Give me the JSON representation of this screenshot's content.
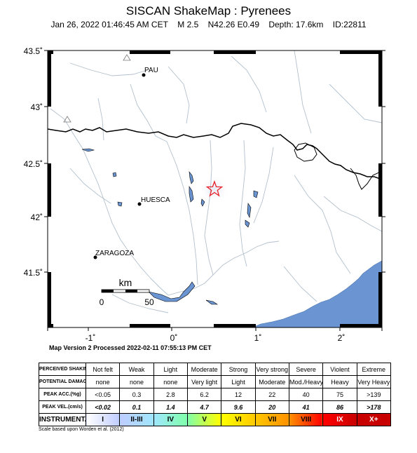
{
  "header": {
    "title": "SISCAN ShakeMap : Pyrenees",
    "date": "Jan 26, 2022 01:46:45 AM CET",
    "magnitude": "M 2.5",
    "location": "N42.26 E0.49",
    "depth": "Depth: 17.6km",
    "event_id": "ID:22811"
  },
  "map": {
    "lat_labels": [
      "43.5˚",
      "43˚",
      "42.5˚",
      "42˚",
      "41.5˚"
    ],
    "lon_labels": [
      "-1˚",
      "0˚",
      "1˚",
      "2˚"
    ],
    "cities": [
      {
        "name": "PAU"
      },
      {
        "name": "HUESCA"
      },
      {
        "name": "ZARAGOZA"
      }
    ],
    "scalebar": {
      "unit": "km",
      "start": "0",
      "end": "50"
    },
    "epicenter_marker": "star-icon",
    "colors": {
      "land": "#ffffff",
      "sea": "#6a95d2",
      "rivers": "#b3c0cc",
      "border": "#000000",
      "epicenter": "#e8202a"
    }
  },
  "version_text": "Map Version 2 Processed 2022-02-11 07:55:13 PM CET",
  "legend": {
    "rows": {
      "shaking": {
        "label": "PERCEIVED SHAKING",
        "values": [
          "Not felt",
          "Weak",
          "Light",
          "Moderate",
          "Strong",
          "Very strong",
          "Severe",
          "Violent",
          "Extreme"
        ]
      },
      "damage": {
        "label": "POTENTIAL DAMAGE",
        "values": [
          "none",
          "none",
          "none",
          "Very light",
          "Light",
          "Moderate",
          "Mod./Heavy",
          "Heavy",
          "Very Heavy"
        ]
      },
      "acc": {
        "label": "PEAK ACC.(%g)",
        "values": [
          "<0.05",
          "0.3",
          "2.8",
          "6.2",
          "12",
          "22",
          "40",
          "75",
          ">139"
        ]
      },
      "vel": {
        "label": "PEAK VEL.(cm/s)",
        "values": [
          "<0.02",
          "0.1",
          "1.4",
          "4.7",
          "9.6",
          "20",
          "41",
          "86",
          ">178"
        ]
      },
      "intensity": {
        "label": "INSTRUMENTAL INTENSITY",
        "values": [
          "I",
          "II-III",
          "IV",
          "V",
          "VI",
          "VII",
          "VIII",
          "IX",
          "X+"
        ]
      }
    },
    "intensity_colors": [
      "#ffffff",
      "#bfccff",
      "#a0e6ff",
      "#80ffaa",
      "#ffff00",
      "#ffc800",
      "#ff9100",
      "#ff0000",
      "#c80000"
    ],
    "scale_note": "Scale based upon Worden et al. (2012)"
  }
}
